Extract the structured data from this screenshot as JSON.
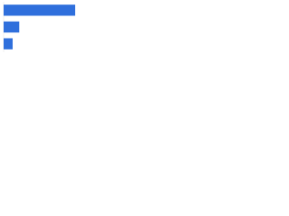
{
  "chart_data": {
    "type": "bar",
    "orientation": "horizontal",
    "categories": [
      null,
      null,
      null
    ],
    "values": [
      87,
      19,
      11
    ],
    "color": "#2f6fdc",
    "xlim": [
      0,
      100
    ]
  }
}
